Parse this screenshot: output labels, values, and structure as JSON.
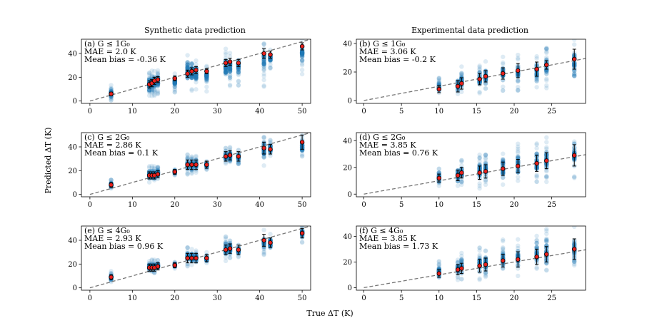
{
  "figure": {
    "col_titles": [
      "Synthetic data prediction",
      "Experimental data prediction"
    ],
    "xlabel": "True ΔT (K)",
    "ylabel": "Predicted ΔT (K)",
    "colors": {
      "scatter": "#1f77b4",
      "marker": "#e8211d",
      "diagonal": "#777777",
      "errorbar": "#000000"
    }
  },
  "chart_data": [
    {
      "type": "scatter",
      "panel": "a",
      "label": "(a) G ≤ 1G₀",
      "mae": "MAE = 2.0 K",
      "bias": "Mean bias = -0.36 K",
      "xlim": [
        -2,
        52
      ],
      "ylim": [
        -2,
        52
      ],
      "xticks": [
        0,
        10,
        20,
        30,
        40,
        50
      ],
      "yticks": [
        0,
        20,
        40
      ],
      "x": [
        5,
        14,
        14.6,
        15.2,
        16,
        20,
        23,
        24,
        25,
        27.5,
        32,
        33,
        35,
        41,
        42.5,
        50
      ],
      "y": [
        6,
        14,
        15,
        17,
        18,
        19,
        23,
        25,
        26,
        25,
        32,
        33,
        32,
        40,
        39,
        46
      ],
      "err": [
        1.5,
        3,
        3,
        3,
        2.5,
        2,
        3,
        3,
        3,
        2,
        3,
        3,
        3,
        4,
        3,
        3
      ],
      "spread_lo": [
        0,
        4,
        4,
        4,
        5,
        6,
        6,
        6,
        6,
        8,
        10,
        8,
        12,
        12,
        26,
        22
      ],
      "spread_hi": [
        14,
        24,
        26,
        27,
        27,
        24,
        42,
        39,
        34,
        30,
        44,
        44,
        38,
        50,
        44,
        52
      ]
    },
    {
      "type": "scatter",
      "panel": "b",
      "label": "(b) G ≤ 1G₀",
      "mae": "MAE = 3.06 K",
      "bias": "Mean bias = -0.2 K",
      "xlim": [
        -1,
        29.5
      ],
      "ylim": [
        -2,
        43
      ],
      "xticks": [
        0,
        5,
        10,
        15,
        20,
        25
      ],
      "yticks": [
        0,
        20,
        40
      ],
      "x": [
        10,
        12.5,
        13,
        15.4,
        16.2,
        18.5,
        20.5,
        23,
        24.3,
        28
      ],
      "y": [
        8,
        10,
        12,
        15,
        17,
        19,
        21,
        22,
        25,
        29
      ],
      "err": [
        2.5,
        4,
        4,
        4,
        4,
        4,
        5,
        5,
        3,
        7
      ],
      "spread_lo": [
        5,
        3,
        5,
        4,
        4,
        6,
        6,
        6,
        7,
        5
      ],
      "spread_hi": [
        16,
        20,
        24,
        27,
        28,
        32,
        32,
        32,
        38,
        43
      ]
    },
    {
      "type": "scatter",
      "panel": "c",
      "label": "(c) G ≤ 2G₀",
      "mae": "MAE = 2.86 K",
      "bias": "Mean bias = 0.1 K",
      "xlim": [
        -2,
        52
      ],
      "ylim": [
        -2,
        52
      ],
      "xticks": [
        0,
        10,
        20,
        30,
        40,
        50
      ],
      "yticks": [
        0,
        20,
        40
      ],
      "x": [
        5,
        14,
        14.6,
        15.2,
        16,
        20,
        23,
        24,
        25,
        27.5,
        32,
        33,
        35,
        41,
        42.5,
        50
      ],
      "y": [
        8,
        16,
        16,
        16,
        17,
        19,
        25,
        25,
        25,
        25,
        32,
        33,
        32,
        39,
        38,
        44
      ],
      "err": [
        2,
        3,
        3,
        3,
        3,
        2,
        4,
        4,
        4,
        3,
        4,
        4,
        4,
        5,
        4,
        6
      ],
      "spread_lo": [
        4,
        10,
        10,
        10,
        12,
        16,
        16,
        16,
        17,
        20,
        24,
        24,
        25,
        22,
        30,
        26
      ],
      "spread_hi": [
        13,
        24,
        24,
        24,
        24,
        22,
        34,
        34,
        33,
        30,
        40,
        40,
        38,
        50,
        46,
        50
      ]
    },
    {
      "type": "scatter",
      "panel": "d",
      "label": "(d) G ≤ 2G₀",
      "mae": "MAE = 3.85 K",
      "bias": "Mean bias = 0.76 K",
      "xlim": [
        -1,
        29.5
      ],
      "ylim": [
        -2,
        46
      ],
      "xticks": [
        0,
        5,
        10,
        15,
        20,
        25
      ],
      "yticks": [
        0,
        20,
        40
      ],
      "x": [
        10,
        12.5,
        13,
        15.4,
        16.2,
        18.5,
        20.5,
        23,
        24.3,
        28
      ],
      "y": [
        12,
        14,
        16,
        16,
        17,
        19,
        21,
        23,
        25,
        29
      ],
      "err": [
        3,
        4,
        4,
        5,
        5,
        5,
        5,
        6,
        6,
        8
      ],
      "spread_lo": [
        6,
        6,
        5,
        4,
        4,
        6,
        8,
        8,
        8,
        10
      ],
      "spread_hi": [
        20,
        22,
        26,
        30,
        32,
        36,
        38,
        40,
        44,
        46
      ]
    },
    {
      "type": "scatter",
      "panel": "e",
      "label": "(e) G ≤ 4G₀",
      "mae": "MAE = 2.93 K",
      "bias": "Mean bias = 0.96 K",
      "xlim": [
        -2,
        52
      ],
      "ylim": [
        -2,
        52
      ],
      "xticks": [
        0,
        10,
        20,
        30,
        40,
        50
      ],
      "yticks": [
        0,
        20,
        40
      ],
      "x": [
        5,
        14,
        14.6,
        15.2,
        16,
        20,
        23,
        24,
        25,
        27.5,
        32,
        33,
        35,
        41,
        42.5,
        50
      ],
      "y": [
        9,
        17,
        17,
        17,
        18,
        19,
        25,
        25,
        25,
        25,
        32,
        33,
        32,
        40,
        38,
        46
      ],
      "err": [
        2,
        3,
        3,
        3,
        3,
        2,
        4,
        4,
        4,
        3,
        4,
        4,
        4,
        5,
        4,
        4
      ],
      "spread_lo": [
        4,
        12,
        12,
        12,
        14,
        16,
        18,
        18,
        18,
        20,
        22,
        24,
        25,
        26,
        30,
        38
      ],
      "spread_hi": [
        14,
        24,
        24,
        24,
        24,
        22,
        34,
        34,
        33,
        30,
        44,
        42,
        38,
        50,
        46,
        52
      ]
    },
    {
      "type": "scatter",
      "panel": "f",
      "label": "(f) G ≤ 4G₀",
      "mae": "MAE = 3.85 K",
      "bias": "Mean bias = 1.73 K",
      "xlim": [
        -1,
        29.5
      ],
      "ylim": [
        -2,
        48
      ],
      "xticks": [
        0,
        5,
        10,
        15,
        20,
        25
      ],
      "yticks": [
        0,
        20,
        40
      ],
      "x": [
        10,
        12.5,
        13,
        15.4,
        16.2,
        18.5,
        20.5,
        23,
        24.3,
        28
      ],
      "y": [
        11,
        14,
        15,
        17,
        18,
        21,
        22,
        24,
        26,
        30
      ],
      "err": [
        3,
        4,
        4,
        5,
        5,
        5,
        6,
        6,
        6,
        8
      ],
      "spread_lo": [
        5,
        6,
        6,
        6,
        6,
        8,
        9,
        10,
        10,
        12
      ],
      "spread_hi": [
        22,
        24,
        28,
        32,
        34,
        38,
        40,
        44,
        46,
        48
      ]
    }
  ]
}
